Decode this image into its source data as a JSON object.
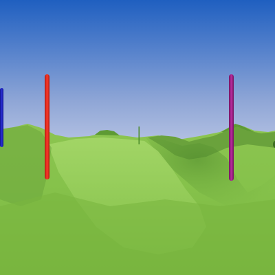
{
  "scene": {
    "sky_top": "#1f5fc0",
    "sky_horizon": "#b5c2e3",
    "terrain_base": "#7fba43",
    "terrain_light": "#9fd061",
    "terrain_shadow": "#5d9a34"
  },
  "poles": [
    {
      "id": "blue",
      "color": "#1a1fb8"
    },
    {
      "id": "red",
      "color": "#e02a1c"
    },
    {
      "id": "purple",
      "color": "#9a1f86"
    },
    {
      "id": "green-far",
      "color": "#4a8a2a"
    }
  ]
}
